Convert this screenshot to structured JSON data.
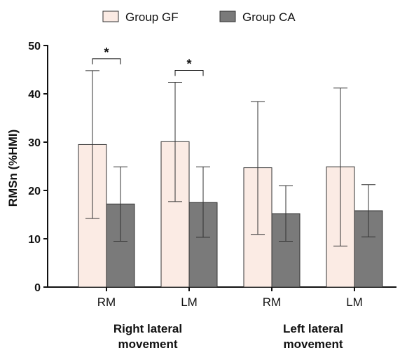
{
  "chart_data": {
    "type": "bar",
    "ylabel": "RMSn (%HMI)",
    "xlabel": "",
    "ylim": [
      0,
      50
    ],
    "yticks": [
      0,
      10,
      20,
      30,
      40,
      50
    ],
    "categories": [
      "RM",
      "LM",
      "RM",
      "LM"
    ],
    "groups": [
      {
        "label": "Right lateral\nmovement",
        "categories": [
          0,
          1
        ]
      },
      {
        "label": "Left lateral\nmovement",
        "categories": [
          2,
          3
        ]
      }
    ],
    "series": [
      {
        "name": "Group GF",
        "color": "#fbebe4",
        "values": [
          29.5,
          30.1,
          24.7,
          24.9
        ],
        "error_low": [
          14.2,
          17.7,
          10.9,
          8.5
        ],
        "error_high": [
          44.8,
          42.4,
          38.4,
          41.2
        ]
      },
      {
        "name": "Group CA",
        "color": "#7a7a7a",
        "values": [
          17.2,
          17.5,
          15.2,
          15.8
        ],
        "error_low": [
          9.5,
          10.3,
          9.5,
          10.4
        ],
        "error_high": [
          24.9,
          24.9,
          21.0,
          21.2
        ]
      }
    ],
    "significance": [
      {
        "category": 0,
        "label": "*"
      },
      {
        "category": 1,
        "label": "*"
      }
    ],
    "legend": "top",
    "grid": false
  }
}
